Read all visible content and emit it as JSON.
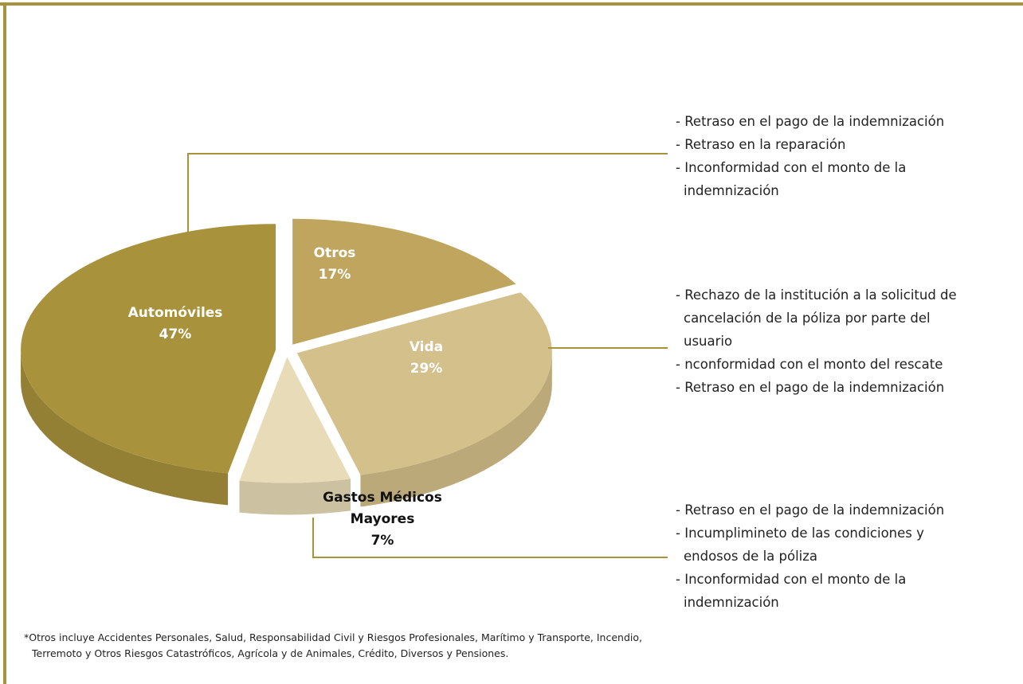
{
  "chart_data": {
    "type": "pie",
    "categories": [
      "Automóviles",
      "Otros",
      "Vida",
      "Gastos Médicos Mayores"
    ],
    "values": [
      47,
      17,
      29,
      7
    ],
    "value_labels": [
      "47%",
      "17%",
      "29%",
      "7%"
    ],
    "colors": [
      "#a8923c",
      "#bfa55e",
      "#d4c08a",
      "#e8dcb8"
    ],
    "annotations": [
      [
        "- Retraso en el pago de la indemnización",
        "- Retraso en la reparación",
        "- Inconformidad con el monto de la indemnización"
      ],
      [
        "- Rechazo de la institución a la solicitud de cancelación de la póliza por parte del usuario",
        "-  nconformidad con el monto del rescate",
        "- Retraso en el pago de la indemnización"
      ],
      [
        "- Retraso en el pago de la indemnización",
        "- Incumplimineto de las condiciones y endosos de la póliza",
        "- Inconformidad con el monto de la indemnización"
      ]
    ],
    "footnote": "*Otros incluye Accidentes Personales, Salud, Responsabilidad Civil y Riesgos Profesionales, Marítimo y Transporte, Incendio, Terremoto y Otros Riesgos Catastróficos, Agrícola y de Animales, Crédito, Diversos y Pensiones."
  }
}
